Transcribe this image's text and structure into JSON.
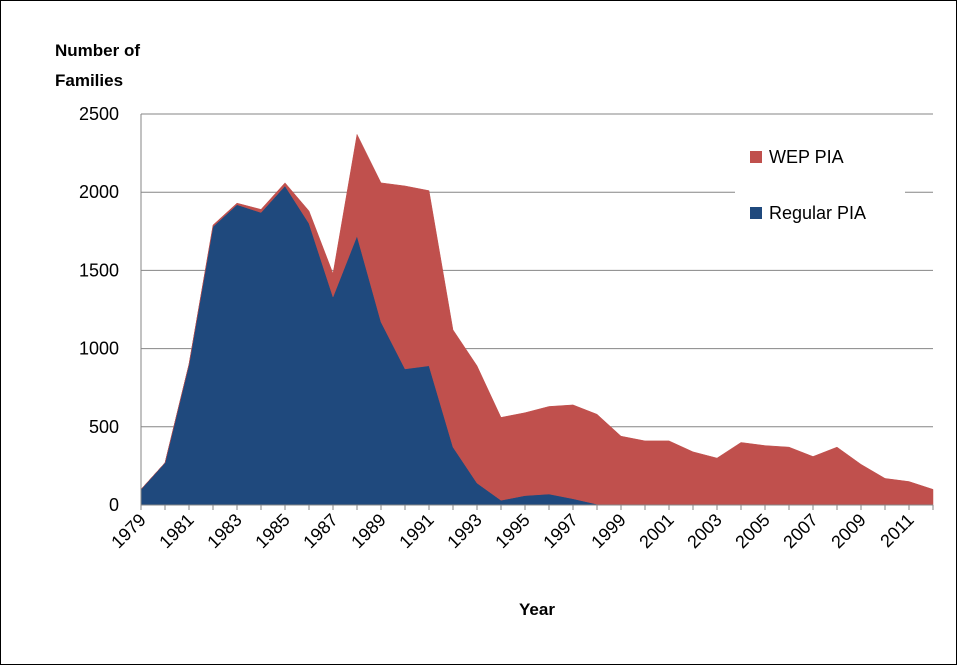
{
  "chart_data": {
    "type": "stacked-area",
    "y_label": "Number of Families",
    "x_label": "Year",
    "categories": [
      "1979",
      null,
      "1981",
      null,
      "1983",
      null,
      "1985",
      null,
      "1987",
      null,
      "1989",
      null,
      "1991",
      null,
      "1993",
      null,
      "1995",
      null,
      "1997",
      null,
      "1999",
      null,
      "2001",
      null,
      "2003",
      null,
      "2005",
      null,
      "2007",
      null,
      "2009",
      null,
      "2011",
      null
    ],
    "series": [
      {
        "name": "Regular PIA",
        "color": "#1f497d",
        "values": [
          100,
          270,
          900,
          1780,
          1920,
          1870,
          2040,
          1800,
          1330,
          1720,
          1170,
          870,
          890,
          370,
          140,
          30,
          60,
          70,
          40,
          5,
          0,
          0,
          0,
          0,
          0,
          0,
          0,
          0,
          0,
          0,
          0,
          0,
          0,
          0
        ]
      },
      {
        "name": "WEP PIA",
        "color": "#c0504d",
        "values": [
          0,
          0,
          0,
          10,
          10,
          20,
          20,
          80,
          150,
          650,
          890,
          1170,
          1120,
          750,
          750,
          530,
          530,
          560,
          600,
          575,
          440,
          410,
          410,
          340,
          300,
          400,
          380,
          370,
          310,
          370,
          260,
          170,
          150,
          100
        ]
      }
    ],
    "ylim": [
      0,
      2500
    ],
    "yticks": [
      0,
      500,
      1000,
      1500,
      2000,
      2500
    ],
    "grid": true,
    "legend": "upper right"
  }
}
